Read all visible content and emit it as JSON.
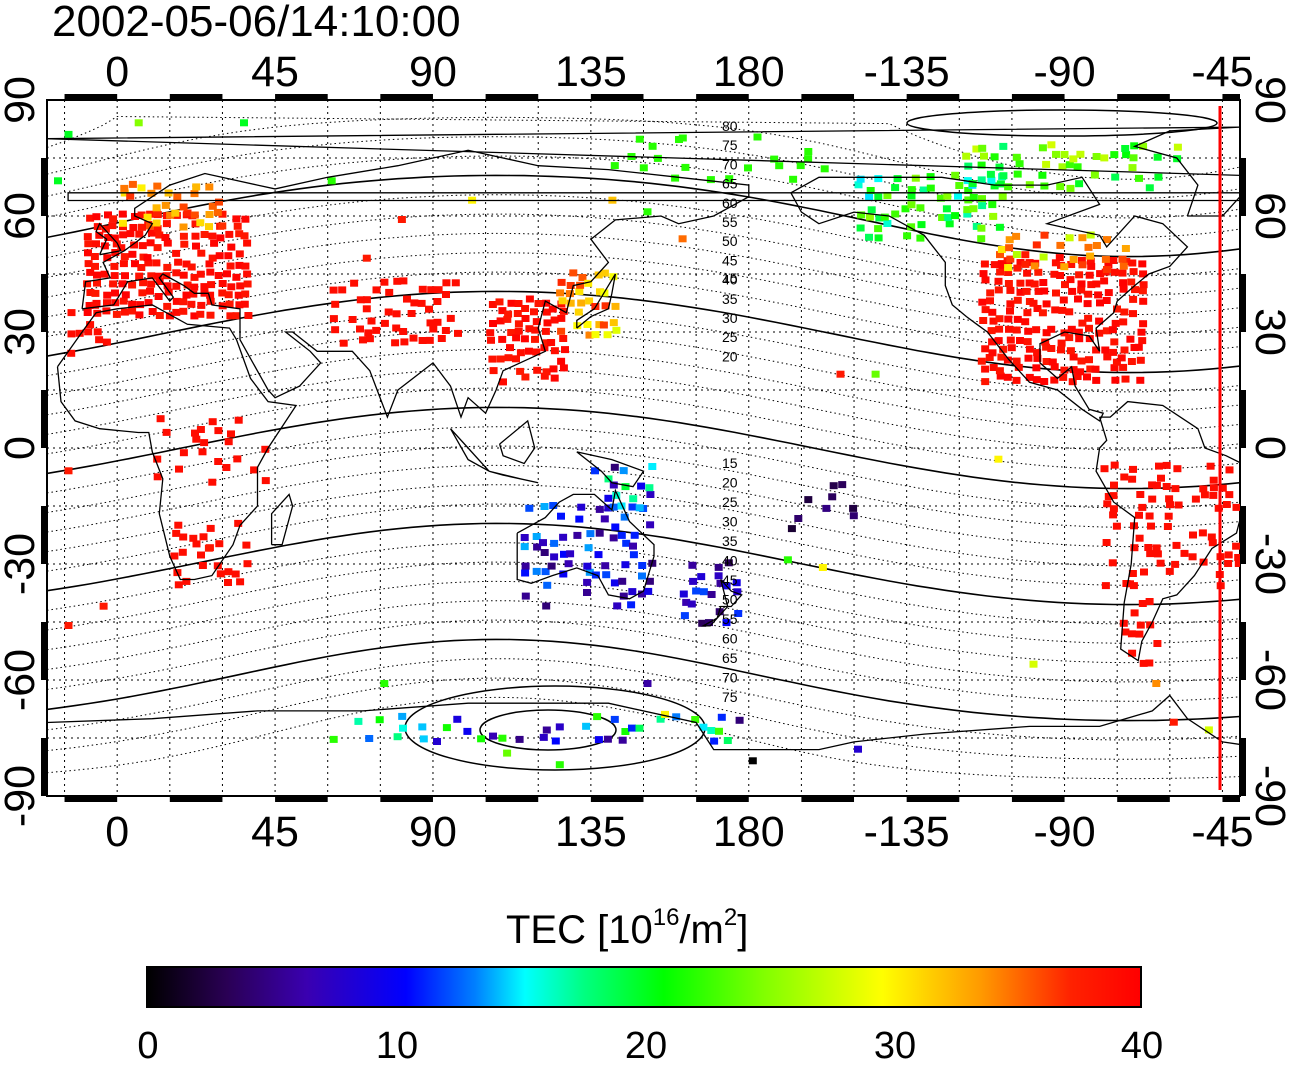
{
  "title": "2002-05-06/14:10:00",
  "map": {
    "top_ticks": [
      "0",
      "45",
      "90",
      "135",
      "180",
      "-135",
      "-90",
      "-45"
    ],
    "bottom_ticks": [
      "0",
      "45",
      "90",
      "135",
      "180",
      "-135",
      "-90",
      "-45"
    ],
    "left_ticks": [
      "90",
      "60",
      "30",
      "0",
      "-30",
      "-60",
      "-90"
    ],
    "right_ticks": [
      "90",
      "60",
      "30",
      "0",
      "-30",
      "-60",
      "-90"
    ],
    "lon_range": [
      -20,
      320
    ],
    "lat_range": [
      -90,
      90
    ],
    "grid": "dotted every 15 degrees",
    "terminator_color": "#ff0000",
    "contour_labels_north": [
      "80",
      "75",
      "70",
      "65",
      "60",
      "55",
      "50",
      "45",
      "40",
      "35",
      "30",
      "25",
      "20",
      "15"
    ],
    "contour_labels_south": [
      "15",
      "20",
      "25",
      "30",
      "35",
      "40",
      "45",
      "50",
      "55",
      "60",
      "65",
      "70",
      "75"
    ]
  },
  "colorbar": {
    "title_prefix": "TEC  [10",
    "title_exp1": "16",
    "title_mid": "/m",
    "title_exp2": "2",
    "title_suffix": "]",
    "tick_labels": [
      "0",
      "10",
      "20",
      "30",
      "40"
    ],
    "range": [
      0,
      40
    ],
    "colormap": "jet"
  }
}
